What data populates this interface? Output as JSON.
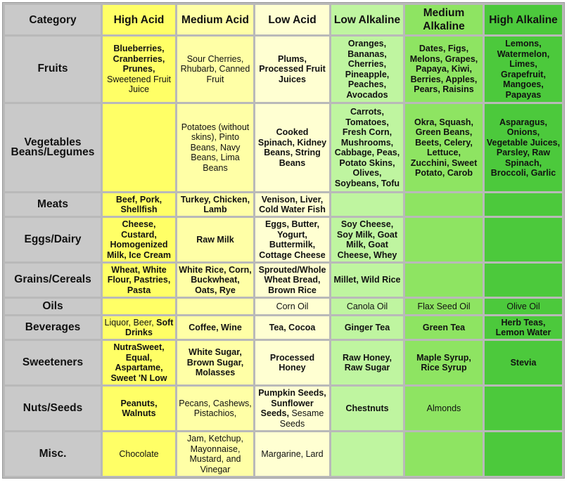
{
  "headers": [
    "Category",
    "High Acid",
    "Medium Acid",
    "Low Acid",
    "Low Alkaline",
    "Medium Alkaline",
    "High Alkaline"
  ],
  "rows": [
    {
      "category": "Fruits",
      "cells": [
        {
          "html": "<b>Blueberries, Cranberries, Prunes,</b> Sweetened Fruit Juice"
        },
        {
          "html": "Sour Cherries, Rhubarb, Canned Fruit"
        },
        {
          "html": "<b>Plums, Processed Fruit Juices</b>"
        },
        {
          "html": "<b>Oranges, Bananas, Cherries, Pineapple, Peaches, Avocados</b>"
        },
        {
          "html": "<b>Dates, Figs, Melons, Grapes, Papaya, Kiwi, Berries, Apples, Pears, Raisins</b>"
        },
        {
          "html": "<b>Lemons, Watermelon, Limes, Grapefruit, Mangoes, Papayas</b>"
        }
      ]
    },
    {
      "category": "Vegetables Beans/Legumes",
      "cells": [
        {
          "html": ""
        },
        {
          "html": "Potatoes (without skins), Pinto Beans, Navy Beans, Lima Beans"
        },
        {
          "html": "<b>Cooked Spinach, Kidney Beans, String Beans</b>"
        },
        {
          "html": "<b>Carrots, Tomatoes, Fresh Corn, Mushrooms, Cabbage, Peas, Potato Skins, Olives, Soybeans, Tofu</b>"
        },
        {
          "html": "<b>Okra, Squash, Green Beans, Beets, Celery, Lettuce, Zucchini, Sweet Potato, Carob</b>"
        },
        {
          "html": "<b>Asparagus, Onions, Vegetable Juices, Parsley, Raw Spinach, Broccoli, Garlic</b>"
        }
      ]
    },
    {
      "category": "Meats",
      "cells": [
        {
          "html": "<b>Beef, Pork, Shellfish</b>"
        },
        {
          "html": "<b>Turkey, Chicken, Lamb</b>"
        },
        {
          "html": "<b>Venison, Liver, Cold Water Fish</b>"
        },
        {
          "html": ""
        },
        {
          "html": ""
        },
        {
          "html": ""
        }
      ]
    },
    {
      "category": "Eggs/Dairy",
      "cells": [
        {
          "html": "<b>Cheese, Custard, Homogenized Milk, Ice Cream</b>"
        },
        {
          "html": "<b>Raw Milk</b>"
        },
        {
          "html": "<b>Eggs, Butter, Yogurt, Buttermilk, Cottage Cheese</b>"
        },
        {
          "html": "<b>Soy Cheese, Soy Milk, Goat Milk, Goat Cheese, Whey</b>"
        },
        {
          "html": ""
        },
        {
          "html": ""
        }
      ]
    },
    {
      "category": "Grains/Cereals",
      "cells": [
        {
          "html": "<b>Wheat, White Flour, Pastries, Pasta</b>"
        },
        {
          "html": "<b>White Rice, Corn, Buckwheat, Oats, Rye</b>"
        },
        {
          "html": "<b>Sprouted/Whole Wheat Bread, Brown Rice</b>"
        },
        {
          "html": "<b>Millet, Wild Rice</b>"
        },
        {
          "html": ""
        },
        {
          "html": ""
        }
      ]
    },
    {
      "category": "Oils",
      "cells": [
        {
          "html": ""
        },
        {
          "html": ""
        },
        {
          "html": "Corn Oil"
        },
        {
          "html": "Canola Oil"
        },
        {
          "html": "Flax Seed Oil"
        },
        {
          "html": "Olive Oil"
        }
      ]
    },
    {
      "category": "Beverages",
      "cells": [
        {
          "html": "Liquor, Beer, <b>Soft Drinks</b>"
        },
        {
          "html": "<b>Coffee, Wine</b>"
        },
        {
          "html": "<b>Tea, Cocoa</b>"
        },
        {
          "html": "<b>Ginger Tea</b>"
        },
        {
          "html": "<b>Green Tea</b>"
        },
        {
          "html": "<b>Herb Teas, Lemon Water</b>"
        }
      ]
    },
    {
      "category": "Sweeteners",
      "cells": [
        {
          "html": "<b>NutraSweet, Equal, Aspartame, Sweet 'N Low</b>"
        },
        {
          "html": "<b>White Sugar, Brown Sugar, Molasses</b>"
        },
        {
          "html": "<b>Processed Honey</b>"
        },
        {
          "html": "<b>Raw Honey, Raw Sugar</b>"
        },
        {
          "html": "<b>Maple Syrup, Rice Syrup</b>"
        },
        {
          "html": "<b>Stevia</b>"
        }
      ]
    },
    {
      "category": "Nuts/Seeds",
      "cells": [
        {
          "html": "<b>Peanuts, Walnuts</b>"
        },
        {
          "html": "Pecans, Cashews, Pistachios,"
        },
        {
          "html": "<b>Pumpkin Seeds, Sunflower Seeds,</b> Sesame Seeds"
        },
        {
          "html": "<b>Chestnuts</b>"
        },
        {
          "html": "Almonds"
        },
        {
          "html": ""
        }
      ]
    },
    {
      "category": "Misc.",
      "cells": [
        {
          "html": "Chocolate"
        },
        {
          "html": "Jam, Ketchup, Mayonnaise, Mustard, and Vinegar"
        },
        {
          "html": "Margarine, Lard"
        },
        {
          "html": ""
        },
        {
          "html": ""
        },
        {
          "html": ""
        }
      ]
    }
  ]
}
